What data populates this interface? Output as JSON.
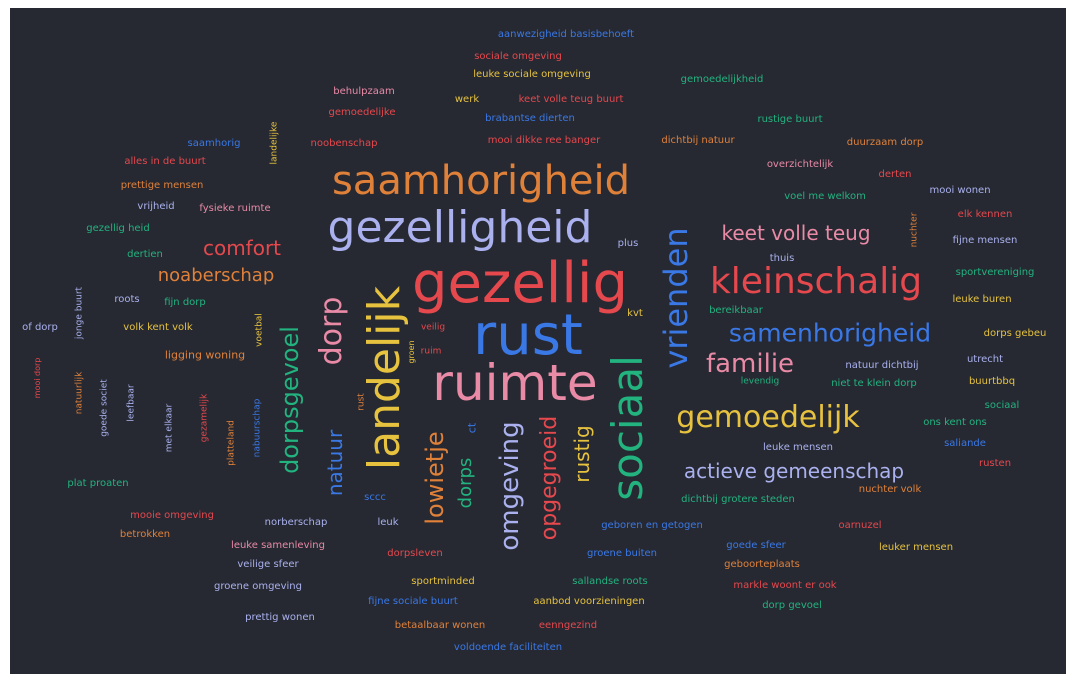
{
  "colors": {
    "background": "#262932",
    "blue": "#3a78e6",
    "red": "#e5484d",
    "orange": "#e0813a",
    "yellow": "#e6c23f",
    "green": "#22b37f",
    "lavender": "#aab1ee",
    "pink": "#e98aa6",
    "teal": "#2bb49a"
  },
  "words": [
    {
      "text": "saamhorigheid",
      "color": "orange"
    },
    {
      "text": "gezelligheid",
      "color": "lavender"
    },
    {
      "text": "gezellig",
      "color": "red"
    },
    {
      "text": "rust",
      "color": "blue"
    },
    {
      "text": "ruimte",
      "color": "pink"
    },
    {
      "text": "landelijk",
      "color": "yellow"
    },
    {
      "text": "sociaal",
      "color": "green"
    },
    {
      "text": "vrienden",
      "color": "blue"
    },
    {
      "text": "kleinschalig",
      "color": "red"
    },
    {
      "text": "samenhorigheid",
      "color": "blue"
    },
    {
      "text": "gemoedelijk",
      "color": "yellow"
    },
    {
      "text": "familie",
      "color": "pink"
    },
    {
      "text": "dorp",
      "color": "pink"
    },
    {
      "text": "dorpsgevoel",
      "color": "green"
    },
    {
      "text": "omgeving",
      "color": "lavender"
    },
    {
      "text": "opgegroeid",
      "color": "red"
    },
    {
      "text": "lowietje",
      "color": "orange"
    },
    {
      "text": "natuur",
      "color": "blue"
    },
    {
      "text": "rustig",
      "color": "yellow"
    },
    {
      "text": "dorps",
      "color": "green"
    },
    {
      "text": "actieve gemeenschap",
      "color": "lavender"
    },
    {
      "text": "keet volle teug",
      "color": "pink"
    },
    {
      "text": "comfort",
      "color": "red"
    },
    {
      "text": "noaberschap",
      "color": "orange"
    },
    {
      "text": "aanwezigheid basisbehoeft",
      "color": "blue"
    },
    {
      "text": "sociale omgeving",
      "color": "red"
    },
    {
      "text": "leuke sociale omgeving",
      "color": "yellow"
    },
    {
      "text": "gemoedelijkheid",
      "color": "green"
    },
    {
      "text": "behulpzaam",
      "color": "pink"
    },
    {
      "text": "werk",
      "color": "yellow"
    },
    {
      "text": "keet volle teug buurt",
      "color": "red"
    },
    {
      "text": "gemoedelijke",
      "color": "red"
    },
    {
      "text": "brabantse dierten",
      "color": "blue"
    },
    {
      "text": "rustige buurt",
      "color": "green"
    },
    {
      "text": "saamhorig",
      "color": "blue"
    },
    {
      "text": "noobenschap",
      "color": "red"
    },
    {
      "text": "mooi dikke ree banger",
      "color": "red"
    },
    {
      "text": "dichtbij natuur",
      "color": "orange"
    },
    {
      "text": "duurzaam dorp",
      "color": "orange"
    },
    {
      "text": "landelijke",
      "color": "yellow"
    },
    {
      "text": "alles in de buurt",
      "color": "red"
    },
    {
      "text": "overzichtelijk",
      "color": "pink"
    },
    {
      "text": "derten",
      "color": "red"
    },
    {
      "text": "prettige mensen",
      "color": "orange"
    },
    {
      "text": "mooi wonen",
      "color": "lavender"
    },
    {
      "text": "vrijheid",
      "color": "lavender"
    },
    {
      "text": "fysieke ruimte",
      "color": "pink"
    },
    {
      "text": "voel me welkom",
      "color": "green"
    },
    {
      "text": "elk kennen",
      "color": "red"
    },
    {
      "text": "gezellig heid",
      "color": "green"
    },
    {
      "text": "dertien",
      "color": "green"
    },
    {
      "text": "plus",
      "color": "lavender"
    },
    {
      "text": "thuis",
      "color": "lavender"
    },
    {
      "text": "fijne mensen",
      "color": "lavender"
    },
    {
      "text": "sportvereniging",
      "color": "green"
    },
    {
      "text": "nuchter",
      "color": "orange"
    },
    {
      "text": "roots",
      "color": "lavender"
    },
    {
      "text": "fijn dorp",
      "color": "green"
    },
    {
      "text": "bereikbaar",
      "color": "green"
    },
    {
      "text": "leuke buren",
      "color": "yellow"
    },
    {
      "text": "dorps gebeu",
      "color": "yellow"
    },
    {
      "text": "volk kent volk",
      "color": "yellow"
    },
    {
      "text": "kvt",
      "color": "yellow"
    },
    {
      "text": "ligging woning",
      "color": "orange"
    },
    {
      "text": "jonge buurt",
      "color": "lavender"
    },
    {
      "text": "voetbal",
      "color": "yellow"
    },
    {
      "text": "veilig",
      "color": "red"
    },
    {
      "text": "ruim",
      "color": "red"
    },
    {
      "text": "groen",
      "color": "yellow"
    },
    {
      "text": "natuur dichtbij",
      "color": "lavender"
    },
    {
      "text": "levendig",
      "color": "green"
    },
    {
      "text": "utrecht",
      "color": "lavender"
    },
    {
      "text": "niet te klein dorp",
      "color": "green"
    },
    {
      "text": "buurtbbq",
      "color": "yellow"
    },
    {
      "text": "sociaal",
      "color": "green"
    },
    {
      "text": "ons kent ons",
      "color": "green"
    },
    {
      "text": "leuke mensen",
      "color": "lavender"
    },
    {
      "text": "saliande",
      "color": "blue"
    },
    {
      "text": "rusten",
      "color": "red"
    },
    {
      "text": "nuchter volk",
      "color": "orange"
    },
    {
      "text": "dichtbij grotere steden",
      "color": "green"
    },
    {
      "text": "plat proaten",
      "color": "green"
    },
    {
      "text": "mooie omgeving",
      "color": "red"
    },
    {
      "text": "betrokken",
      "color": "orange"
    },
    {
      "text": "norberschap",
      "color": "lavender"
    },
    {
      "text": "leuk",
      "color": "lavender"
    },
    {
      "text": "geboren en getogen",
      "color": "blue"
    },
    {
      "text": "oarnuzel",
      "color": "red"
    },
    {
      "text": "leuke samenleving",
      "color": "pink"
    },
    {
      "text": "veilige sfeer",
      "color": "lavender"
    },
    {
      "text": "dorpsleven",
      "color": "red"
    },
    {
      "text": "goede sfeer",
      "color": "blue"
    },
    {
      "text": "leuker mensen",
      "color": "yellow"
    },
    {
      "text": "geboorteplaats",
      "color": "orange"
    },
    {
      "text": "groene omgeving",
      "color": "lavender"
    },
    {
      "text": "sportminded",
      "color": "yellow"
    },
    {
      "text": "sallandse roots",
      "color": "green"
    },
    {
      "text": "markle woont er ook",
      "color": "red"
    },
    {
      "text": "fijne sociale buurt",
      "color": "blue"
    },
    {
      "text": "aanbod voorzieningen",
      "color": "yellow"
    },
    {
      "text": "dorp gevoel",
      "color": "green"
    },
    {
      "text": "prettig wonen",
      "color": "lavender"
    },
    {
      "text": "betaalbaar wonen",
      "color": "orange"
    },
    {
      "text": "eenngezind",
      "color": "red"
    },
    {
      "text": "voldoende faciliteiten",
      "color": "blue"
    },
    {
      "text": "groene buiten",
      "color": "blue"
    },
    {
      "text": "of dorp",
      "color": "lavender"
    },
    {
      "text": "mooi dorp",
      "color": "red"
    },
    {
      "text": "natuurlijk",
      "color": "orange"
    },
    {
      "text": "goede societ",
      "color": "lavender"
    },
    {
      "text": "leefbaar",
      "color": "lavender"
    },
    {
      "text": "met elkaar",
      "color": "lavender"
    },
    {
      "text": "gezamelijk",
      "color": "red"
    },
    {
      "text": "platteland",
      "color": "orange"
    },
    {
      "text": "nabuurschap",
      "color": "blue"
    },
    {
      "text": "rust",
      "color": "orange"
    },
    {
      "text": "sccc",
      "color": "blue"
    },
    {
      "text": "ct",
      "color": "blue"
    }
  ]
}
